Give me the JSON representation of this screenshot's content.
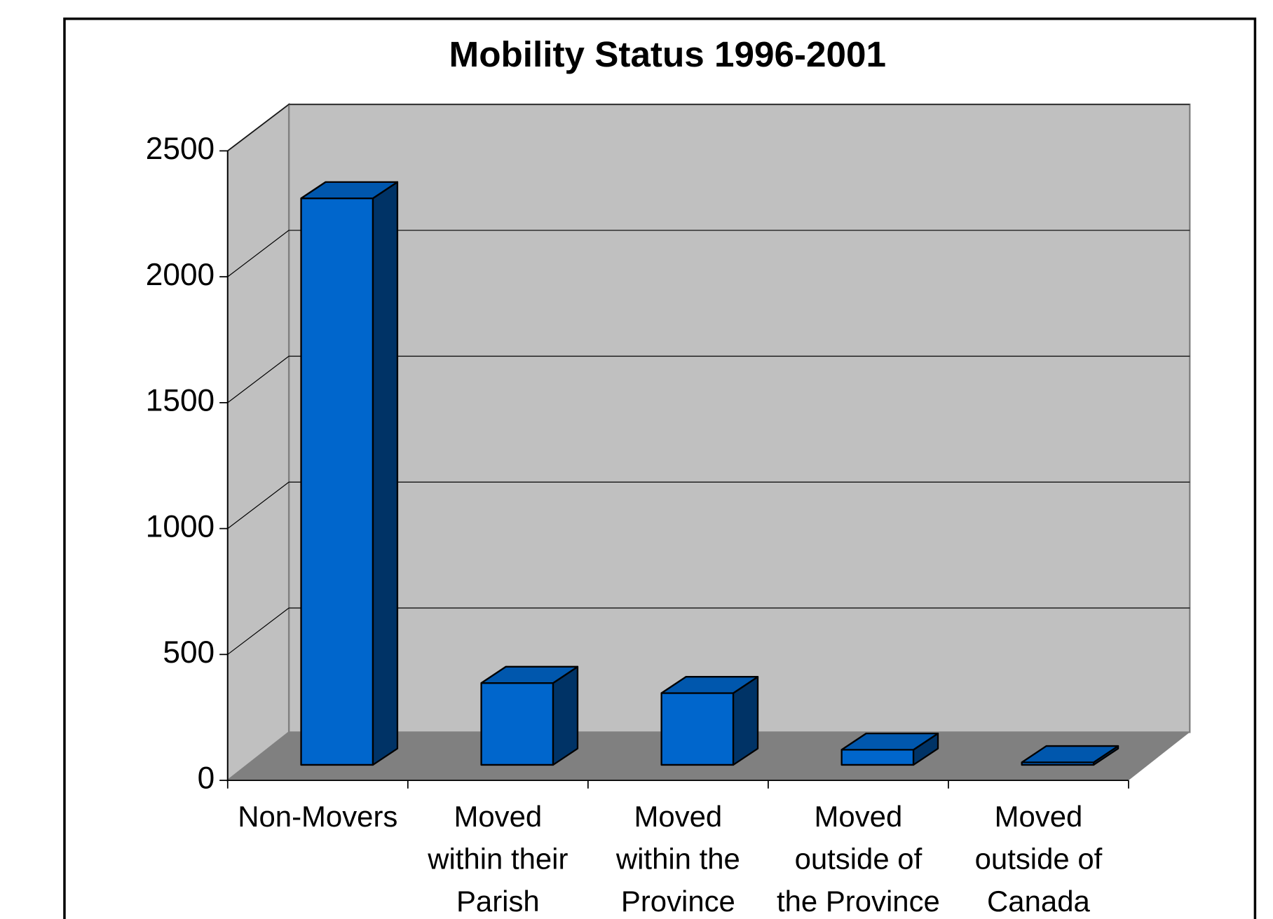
{
  "chart_data": {
    "type": "bar3d",
    "title": "Mobility Status 1996-2001",
    "categories": [
      [
        "Non-Movers"
      ],
      [
        "Moved",
        "within their",
        "Parish"
      ],
      [
        "Moved",
        "within the",
        "Province"
      ],
      [
        "Moved",
        "outside of",
        "the Province"
      ],
      [
        "Moved",
        "outside of",
        "Canada"
      ]
    ],
    "values": [
      2250,
      325,
      285,
      60,
      10
    ],
    "color": "#0066cc",
    "ylim": [
      0,
      2500
    ],
    "yticks": [
      0,
      500,
      1000,
      1500,
      2000,
      2500
    ],
    "grid": true
  }
}
